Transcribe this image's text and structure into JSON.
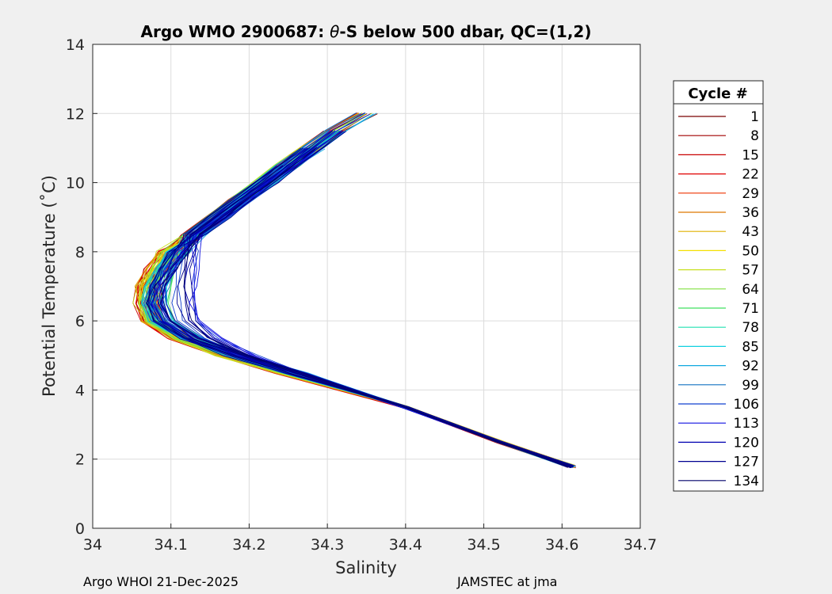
{
  "chart_data": {
    "type": "line",
    "title": "Argo WMO 2900687: θ-S below 500 dbar,  QC=(1,2)",
    "title_prefix": "Argo WMO 2900687: ",
    "title_theta": "θ",
    "title_suffix": "-S below 500 dbar,  QC=(1,2)",
    "xlabel": "Salinity",
    "ylabel": "Potential Temperature (˚C)",
    "xlim": [
      34,
      34.7
    ],
    "ylim": [
      0,
      14
    ],
    "xticks": [
      "34",
      "34.1",
      "34.2",
      "34.3",
      "34.4",
      "34.5",
      "34.6",
      "34.7"
    ],
    "yticks": [
      "0",
      "2",
      "4",
      "6",
      "8",
      "10",
      "12",
      "14"
    ],
    "grid": true,
    "legend_title": "Cycle #",
    "legend_placement": "right",
    "legend": [
      {
        "label": "1",
        "color": "#7a0000"
      },
      {
        "label": "8",
        "color": "#a00000"
      },
      {
        "label": "15",
        "color": "#c80000"
      },
      {
        "label": "22",
        "color": "#e00000"
      },
      {
        "label": "29",
        "color": "#ee3300"
      },
      {
        "label": "36",
        "color": "#dd7700"
      },
      {
        "label": "43",
        "color": "#e0b000"
      },
      {
        "label": "50",
        "color": "#f4e000"
      },
      {
        "label": "57",
        "color": "#c8e020"
      },
      {
        "label": "64",
        "color": "#80e040"
      },
      {
        "label": "71",
        "color": "#40e060"
      },
      {
        "label": "78",
        "color": "#20e0b0"
      },
      {
        "label": "85",
        "color": "#10d0e0"
      },
      {
        "label": "92",
        "color": "#10a8e0"
      },
      {
        "label": "99",
        "color": "#1070c0"
      },
      {
        "label": "106",
        "color": "#1040d0"
      },
      {
        "label": "113",
        "color": "#1010e0"
      },
      {
        "label": "120",
        "color": "#0000b0"
      },
      {
        "label": "127",
        "color": "#000090"
      },
      {
        "label": "134",
        "color": "#00006a"
      }
    ],
    "series_profile": {
      "temperature": [
        1.75,
        2.5,
        3.5,
        4.5,
        5.0,
        5.5,
        6.0,
        6.5,
        7.0,
        7.5,
        8.0,
        8.5,
        9.0,
        9.5,
        10.0,
        10.5,
        11.0,
        11.5,
        12.0
      ],
      "salinity": [
        34.612,
        34.52,
        34.4,
        34.255,
        34.18,
        34.12,
        34.085,
        34.075,
        34.078,
        34.09,
        34.105,
        34.13,
        34.16,
        34.19,
        34.22,
        34.25,
        34.28,
        34.31,
        34.35
      ]
    }
  },
  "footer": {
    "left": "Argo WHOI 21-Dec-2025",
    "right": "JAMSTEC at jma"
  }
}
